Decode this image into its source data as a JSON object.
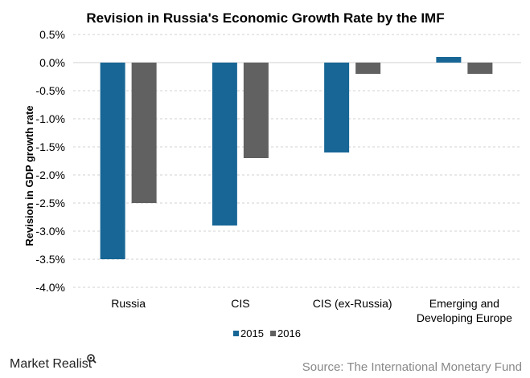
{
  "chart_data": {
    "type": "bar",
    "title": "Revision in Russia's Economic Growth Rate by the IMF",
    "xlabel": "",
    "ylabel": "Revision in GDP growth rate",
    "ylim": [
      -4.0,
      0.5
    ],
    "yticks": [
      0.5,
      0.0,
      -0.5,
      -1.0,
      -1.5,
      -2.0,
      -2.5,
      -3.0,
      -3.5,
      -4.0
    ],
    "ytick_labels": [
      "0.5%",
      "0.0%",
      "-0.5%",
      "-1.0%",
      "-1.5%",
      "-2.0%",
      "-2.5%",
      "-3.0%",
      "-3.5%",
      "-4.0%"
    ],
    "grid": true,
    "categories": [
      [
        "Russia"
      ],
      [
        "CIS"
      ],
      [
        "CIS (ex-Russia)"
      ],
      [
        "Emerging and",
        "Developing Europe"
      ]
    ],
    "series": [
      {
        "name": "2015",
        "color": "#176696",
        "values": [
          -3.5,
          -2.9,
          -1.6,
          0.1
        ]
      },
      {
        "name": "2016",
        "color": "#616161",
        "values": [
          -2.5,
          -1.7,
          -0.2,
          -0.2
        ]
      }
    ],
    "legend": {
      "placement": "bottom-center",
      "entries": [
        "2015",
        "2016"
      ]
    }
  },
  "footer": {
    "brand": "Market Realist",
    "source": "Source: The International Monetary Fund"
  }
}
